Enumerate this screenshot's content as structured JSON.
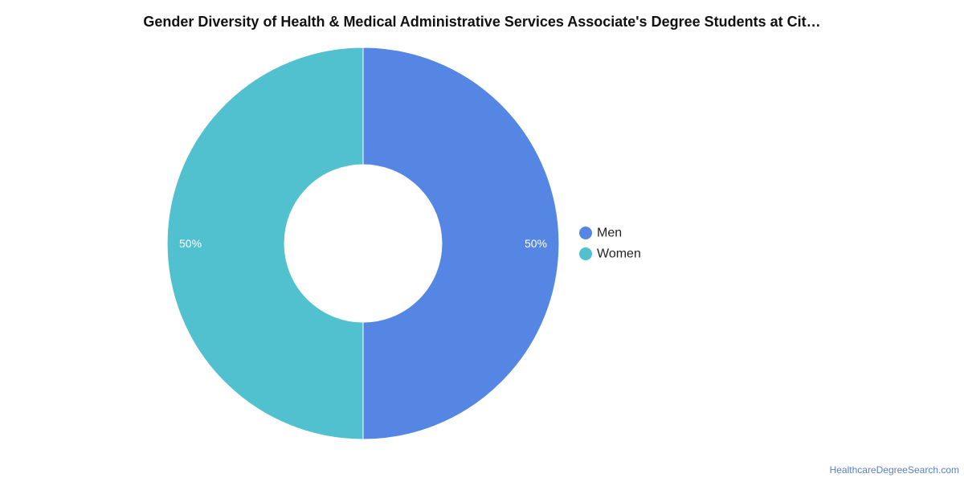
{
  "chart_data": {
    "type": "pie",
    "donut": true,
    "title": "Gender Diversity of Health & Medical Administrative Services Associate's Degree Students at Cit…",
    "categories": [
      "Men",
      "Women"
    ],
    "values": [
      50,
      50
    ],
    "value_labels": [
      "50%",
      "50%"
    ],
    "colors": [
      "#5586e3",
      "#52c1cf"
    ],
    "legend_position": "right"
  },
  "footer": {
    "source": "HealthcareDegreeSearch.com"
  }
}
